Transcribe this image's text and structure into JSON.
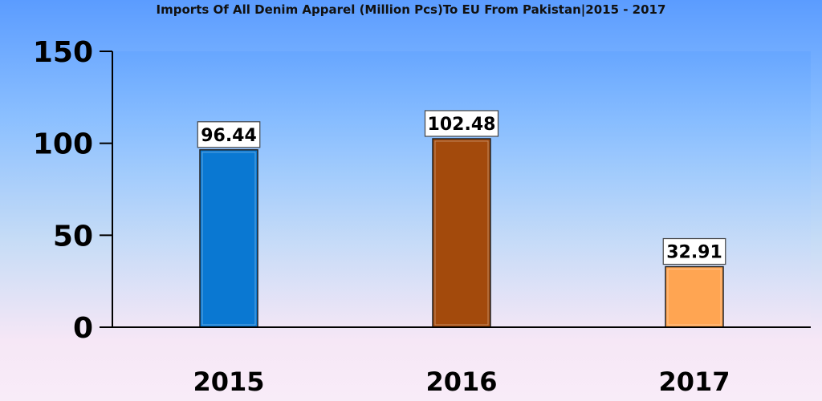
{
  "chart_data": {
    "type": "bar",
    "title": "Imports Of All Denim Apparel (Million Pcs)To EU From Pakistan|2015 - 2017",
    "xlabel": "",
    "ylabel": "",
    "categories": [
      "2015",
      "2016",
      "2017"
    ],
    "values": [
      96.44,
      102.48,
      32.91
    ],
    "value_labels": [
      "96.44",
      "102.48",
      "32.91"
    ],
    "bar_colors": [
      "#0a78d2",
      "#a34a0c",
      "#ffa552"
    ],
    "ylim": [
      0,
      150
    ],
    "yticks": [
      0,
      50,
      100,
      150
    ],
    "ytick_labels": [
      "0",
      "50",
      "100",
      "150"
    ],
    "grid": false,
    "legend": "none"
  }
}
